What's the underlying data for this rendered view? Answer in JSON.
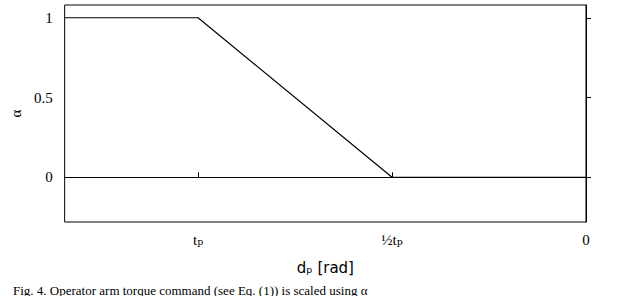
{
  "chart_data": {
    "type": "line",
    "xlabel": "dₚ [rad]",
    "ylabel": "α",
    "caption": "Fig. 4. Operator arm torque command (see Eq. (1)) is scaled using α",
    "x": [
      -1.344,
      -1,
      -0.5,
      0
    ],
    "series": [
      {
        "name": "α",
        "color": "#000000",
        "values": [
          1,
          1,
          0,
          0
        ]
      }
    ],
    "xlim": [
      -1.344,
      0
    ],
    "xticks": [
      {
        "value": -1,
        "label": "tₚ"
      },
      {
        "value": -0.5,
        "label": "½tₚ"
      },
      0
    ],
    "ylim": [
      -0.28,
      1.08
    ],
    "yticks": [
      0,
      0.5,
      1
    ],
    "grid": false
  }
}
